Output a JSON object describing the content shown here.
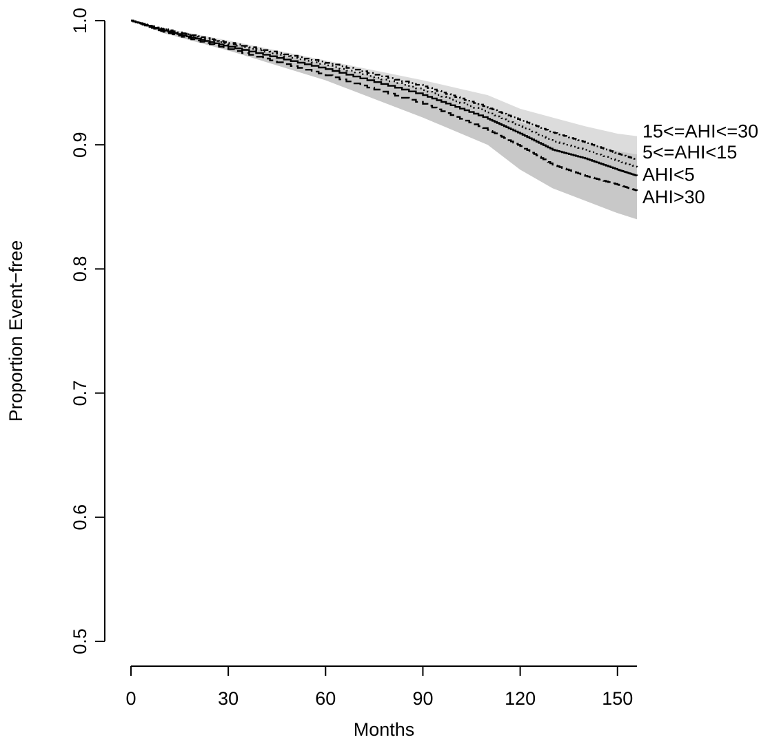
{
  "chart_data": {
    "type": "line",
    "title": "",
    "xlabel": "Months",
    "ylabel": "Proportion Event−free",
    "xlim": [
      0,
      156
    ],
    "ylim": [
      0.5,
      1.0
    ],
    "x_ticks": [
      0,
      30,
      60,
      90,
      120,
      150
    ],
    "y_ticks": [
      0.5,
      0.6,
      0.7,
      0.8,
      0.9,
      1.0
    ],
    "x_tick_labels": [
      "0",
      "30",
      "60",
      "90",
      "120",
      "150"
    ],
    "y_tick_labels": [
      "0.5",
      "0.6",
      "0.7",
      "0.8",
      "0.9",
      "1.0"
    ],
    "grid": false,
    "band": {
      "color_outer": "#dcdcdc",
      "color_inner": "#c8c8c8",
      "x": [
        0,
        10,
        30,
        60,
        90,
        110,
        120,
        130,
        140,
        150,
        156
      ],
      "upper": [
        1.0,
        0.994,
        0.984,
        0.968,
        0.952,
        0.94,
        0.929,
        0.922,
        0.915,
        0.909,
        0.907
      ],
      "lower": [
        1.0,
        0.99,
        0.976,
        0.952,
        0.922,
        0.9,
        0.88,
        0.865,
        0.855,
        0.845,
        0.84
      ]
    },
    "series": [
      {
        "label": "15<=AHI<=30",
        "dash": "8,4,2,4",
        "x": [
          0,
          10,
          30,
          60,
          90,
          110,
          120,
          130,
          140,
          150,
          156
        ],
        "y": [
          1.0,
          0.993,
          0.982,
          0.966,
          0.947,
          0.93,
          0.92,
          0.91,
          0.902,
          0.893,
          0.888
        ]
      },
      {
        "label": "5<=AHI<15",
        "dash": "2,5",
        "x": [
          0,
          10,
          30,
          60,
          90,
          110,
          120,
          130,
          140,
          150,
          156
        ],
        "y": [
          1.0,
          0.993,
          0.981,
          0.964,
          0.944,
          0.926,
          0.915,
          0.903,
          0.896,
          0.887,
          0.882
        ]
      },
      {
        "label": "AHI<5",
        "dash": "",
        "x": [
          0,
          10,
          30,
          60,
          90,
          110,
          120,
          130,
          140,
          150,
          156
        ],
        "y": [
          1.0,
          0.992,
          0.979,
          0.961,
          0.94,
          0.921,
          0.909,
          0.896,
          0.889,
          0.88,
          0.875
        ]
      },
      {
        "label": "AHI>30",
        "dash": "12,6",
        "x": [
          0,
          10,
          30,
          60,
          90,
          110,
          120,
          130,
          140,
          150,
          156
        ],
        "y": [
          1.0,
          0.991,
          0.977,
          0.956,
          0.933,
          0.912,
          0.899,
          0.884,
          0.875,
          0.868,
          0.863
        ]
      }
    ],
    "series_label_y": [
      0.91,
      0.893,
      0.875,
      0.857
    ]
  }
}
